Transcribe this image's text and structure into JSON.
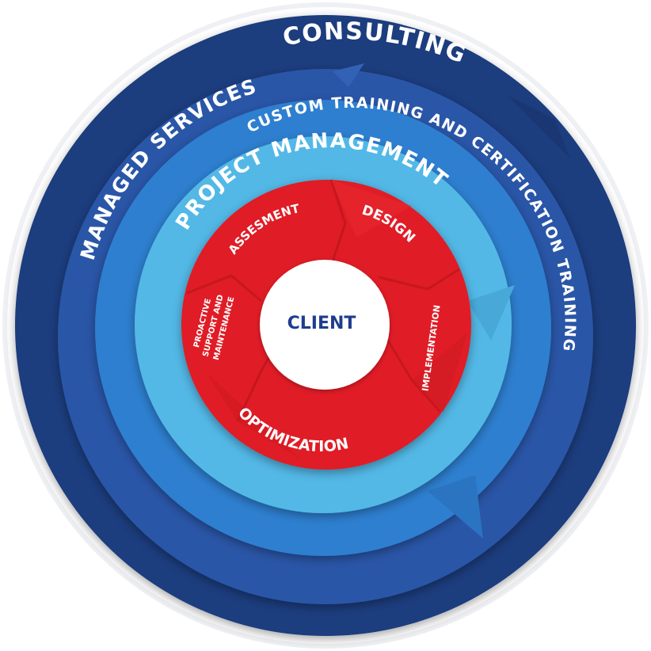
{
  "rings": {
    "consulting": {
      "label": "CONSULTING",
      "color": "#1f3d7e"
    },
    "managed_services": {
      "label": "MANAGED SERVICES",
      "color": "#2a56a8"
    },
    "custom_training": {
      "label": "CUSTOM TRAINING AND CERTIFICATION TRAINING",
      "color": "#2e7fd0"
    },
    "project_management": {
      "label": "PROJECT MANAGEMENT",
      "color": "#52b8e6"
    }
  },
  "cycle": {
    "color": "#e01f26",
    "segments": {
      "assessment": "ASSESMENT",
      "design": "DESIGN",
      "implementation": "IMPLEMENTATION",
      "optimization": "OPTIMIZATION",
      "proactive_line1": "PROACTIVE",
      "proactive_line2": "SUPPORT AND",
      "proactive_line3": "MAINTENANCE"
    }
  },
  "center": {
    "label": "CLIENT",
    "color": "#1f3d8f"
  }
}
